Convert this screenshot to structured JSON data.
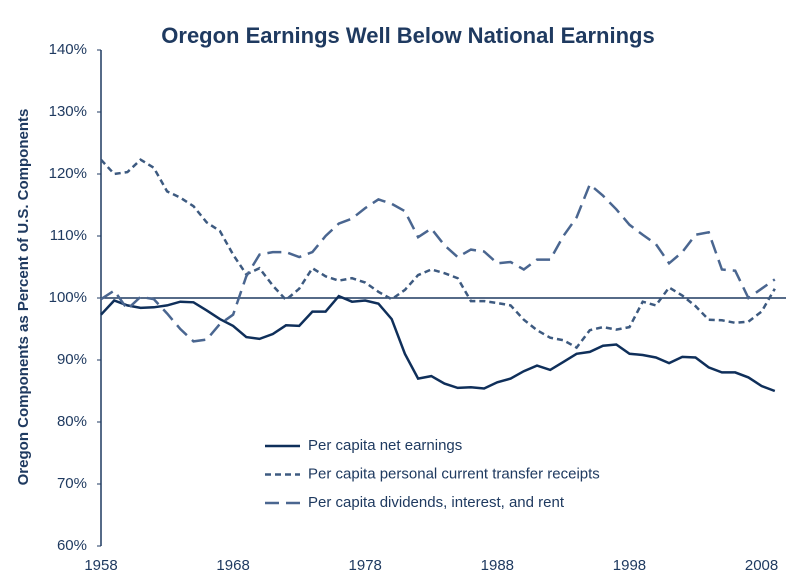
{
  "chart_data": {
    "type": "line",
    "title": "Oregon Earnings Well Below National Earnings",
    "y_label": "Oregon Components as Percent of U.S. Components",
    "x": [
      1958,
      1959,
      1960,
      1961,
      1962,
      1963,
      1964,
      1965,
      1966,
      1967,
      1968,
      1969,
      1970,
      1971,
      1972,
      1973,
      1974,
      1975,
      1976,
      1977,
      1978,
      1979,
      1980,
      1981,
      1982,
      1983,
      1984,
      1985,
      1986,
      1987,
      1988,
      1989,
      1990,
      1991,
      1992,
      1993,
      1994,
      1995,
      1996,
      1997,
      1998,
      1999,
      2000,
      2001,
      2002,
      2003,
      2004,
      2005,
      2006,
      2007,
      2008,
      2009
    ],
    "series": [
      {
        "name": "Per capita net earnings",
        "color": "#0f2f5a",
        "dash": "solid",
        "values": [
          97.3,
          99.6,
          98.8,
          98.4,
          98.5,
          98.8,
          99.4,
          99.3,
          98.0,
          96.6,
          95.5,
          93.7,
          93.4,
          94.2,
          95.6,
          95.5,
          97.8,
          97.8,
          100.3,
          99.4,
          99.6,
          99.1,
          96.6,
          91.0,
          87.0,
          87.4,
          86.2,
          85.5,
          85.6,
          85.4,
          86.4,
          87.0,
          88.2,
          89.1,
          88.4,
          89.7,
          91.0,
          91.3,
          92.3,
          92.5,
          91.0,
          90.8,
          90.4,
          89.5,
          90.5,
          90.4,
          88.8,
          88.0,
          88.0,
          87.2,
          85.8,
          85.0
        ]
      },
      {
        "name": "Per capita personal current transfer receipts",
        "color": "#3d5a80",
        "dash": "short",
        "values": [
          122.3,
          120.0,
          120.3,
          122.3,
          121.0,
          117.2,
          116.2,
          114.8,
          112.2,
          110.8,
          107.0,
          103.8,
          104.8,
          102.0,
          99.7,
          101.5,
          104.8,
          103.5,
          102.8,
          103.2,
          102.5,
          101.0,
          99.8,
          101.3,
          103.7,
          104.6,
          104.0,
          103.2,
          99.5,
          99.5,
          99.2,
          98.8,
          96.5,
          94.8,
          93.6,
          93.2,
          92.0,
          94.8,
          95.3,
          94.9,
          95.3,
          99.4,
          98.8,
          101.7,
          100.4,
          98.7,
          96.5,
          96.4,
          96.0,
          96.2,
          97.8,
          101.5
        ]
      },
      {
        "name": "Per capita dividends, interest, and rent",
        "color": "#4a6690",
        "dash": "long",
        "values": [
          99.8,
          101.2,
          98.2,
          100.2,
          99.8,
          97.5,
          95.0,
          93.0,
          93.3,
          95.8,
          97.3,
          103.5,
          107.0,
          107.4,
          107.4,
          106.6,
          107.4,
          110.0,
          112.0,
          112.8,
          114.5,
          115.9,
          115.2,
          114.0,
          109.8,
          111.2,
          108.5,
          106.6,
          107.8,
          107.5,
          105.6,
          105.8,
          104.6,
          106.2,
          106.2,
          110.0,
          113.0,
          118.3,
          116.5,
          114.3,
          111.8,
          110.2,
          108.7,
          105.6,
          107.4,
          110.2,
          110.6,
          104.6,
          104.4,
          100.0,
          101.5,
          103.0
        ]
      }
    ],
    "xlim": [
      1958,
      2010
    ],
    "xticks": [
      1958,
      1968,
      1978,
      1988,
      1998,
      2008
    ],
    "ylim": [
      60,
      140
    ],
    "yticks": [
      {
        "value": 60,
        "label": "60%"
      },
      {
        "value": 70,
        "label": "70%"
      },
      {
        "value": 80,
        "label": "80%"
      },
      {
        "value": 90,
        "label": "90%"
      },
      {
        "value": 100,
        "label": "100%"
      },
      {
        "value": 110,
        "label": "110%"
      },
      {
        "value": 120,
        "label": "120%"
      },
      {
        "value": 130,
        "label": "130%"
      },
      {
        "value": 140,
        "label": "140%"
      }
    ],
    "reference_line": 100,
    "grid": false,
    "legend": "bottom"
  }
}
